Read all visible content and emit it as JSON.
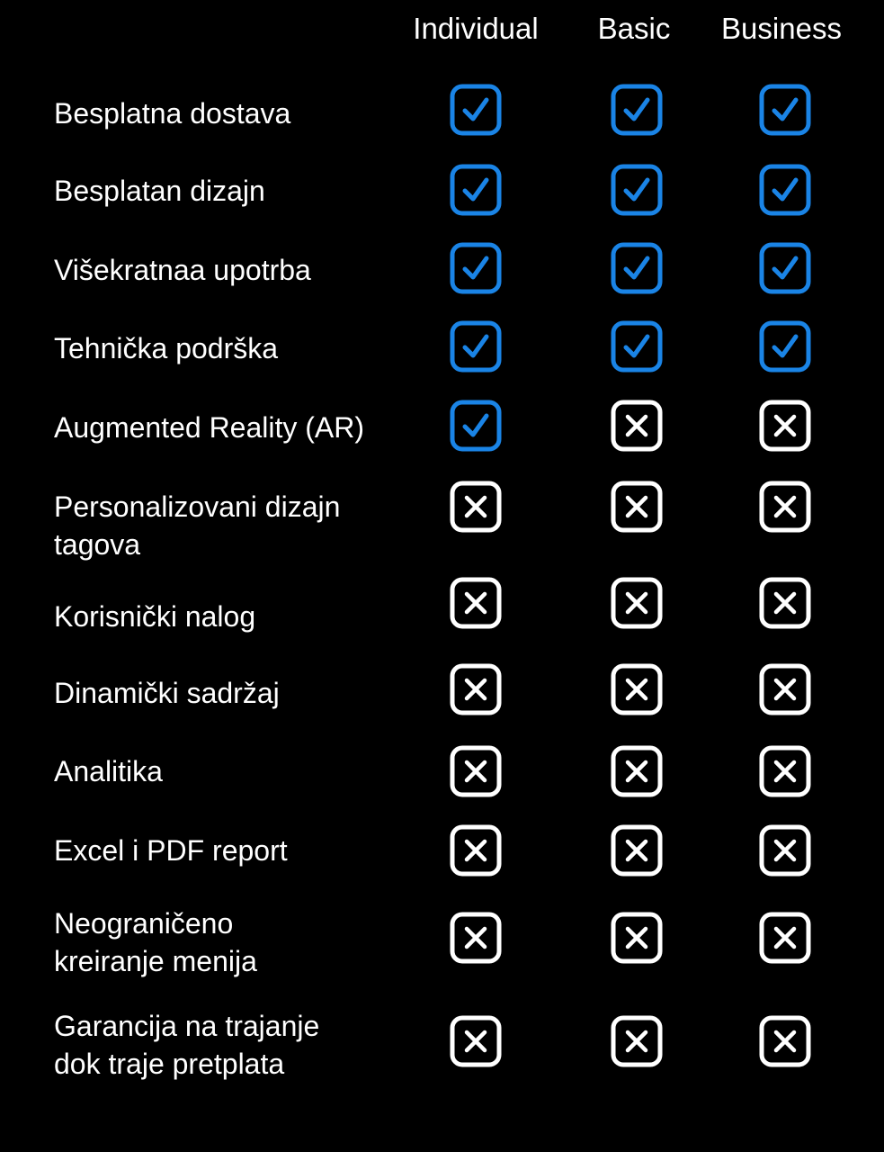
{
  "plans": [
    "Individual",
    "Basic",
    "Business"
  ],
  "colors": {
    "included": "#1a84e6",
    "excluded": "#ffffff",
    "background": "#000000"
  },
  "icons": {
    "included": "checkbox-checked-icon",
    "excluded": "checkbox-x-icon"
  },
  "features": [
    {
      "label": "Besplatna dostava",
      "included": [
        true,
        true,
        true
      ]
    },
    {
      "label": "Besplatan dizajn",
      "included": [
        true,
        true,
        true
      ]
    },
    {
      "label": "Višekratnaa upotrba",
      "included": [
        true,
        true,
        true
      ]
    },
    {
      "label": "Tehnička podrška",
      "included": [
        true,
        true,
        true
      ]
    },
    {
      "label": "Augmented Reality (AR)",
      "included": [
        true,
        false,
        false
      ]
    },
    {
      "label": "Personalizovani dizajn\ntagova",
      "included": [
        false,
        false,
        false
      ]
    },
    {
      "label": "Korisnički nalog",
      "included": [
        false,
        false,
        false
      ]
    },
    {
      "label": "Dinamički sadržaj",
      "included": [
        false,
        false,
        false
      ]
    },
    {
      "label": "Analitika",
      "included": [
        false,
        false,
        false
      ]
    },
    {
      "label": "Excel i PDF report",
      "included": [
        false,
        false,
        false
      ]
    },
    {
      "label": "Neograničeno\nkreiranje menija",
      "included": [
        false,
        false,
        false
      ]
    },
    {
      "label": "Garancija na trajanje\ndok traje pretplata",
      "included": [
        false,
        false,
        false
      ]
    }
  ]
}
